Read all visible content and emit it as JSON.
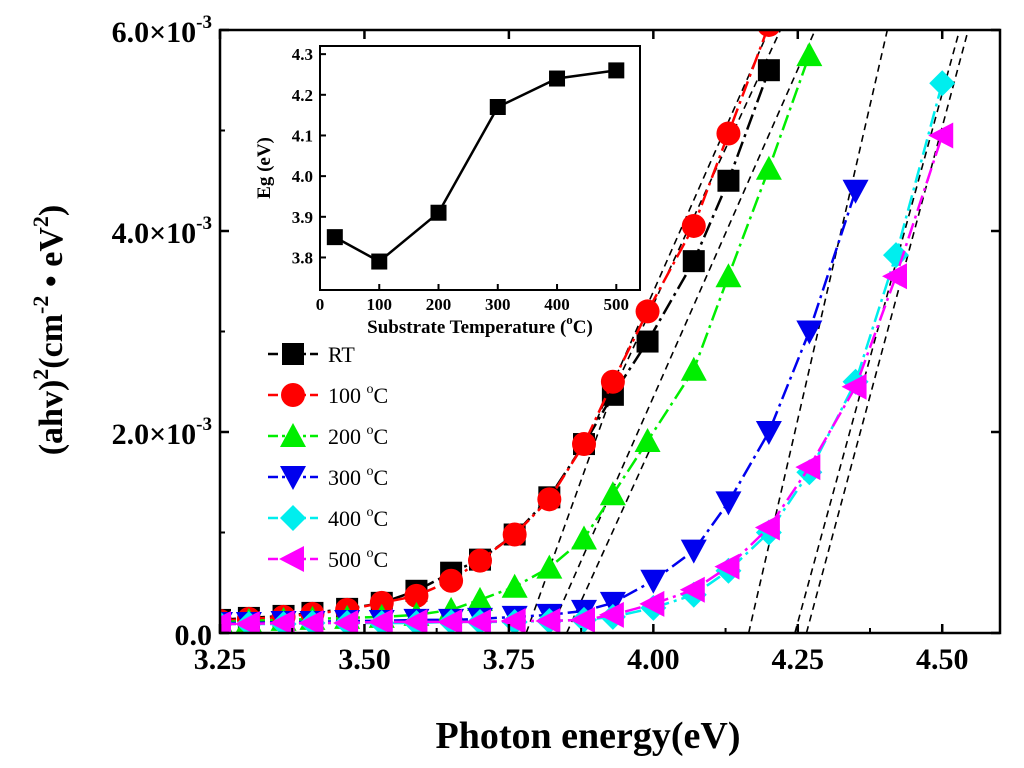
{
  "chart_data": {
    "type": "scatter",
    "xlabel": "Photon energy(eV)",
    "ylabel": {
      "base": "(ahv)",
      "exp1": "2",
      "mid": "(cm",
      "exp2": "-2",
      "dot": " • eV",
      "exp3": "2",
      "close": ")"
    },
    "xlim": [
      3.25,
      4.6
    ],
    "ylim": [
      0,
      0.006
    ],
    "xticks": [
      {
        "v": 3.25,
        "label": "3.25"
      },
      {
        "v": 3.5,
        "label": "3.50"
      },
      {
        "v": 3.75,
        "label": "3.75"
      },
      {
        "v": 4.0,
        "label": "4.00"
      },
      {
        "v": 4.25,
        "label": "4.25"
      },
      {
        "v": 4.5,
        "label": "4.50"
      }
    ],
    "yticks": [
      {
        "v": 0,
        "label": "0.0",
        "exp": ""
      },
      {
        "v": 0.002,
        "label": "2.0×10",
        "exp": "-3"
      },
      {
        "v": 0.004,
        "label": "4.0×10",
        "exp": "-3"
      },
      {
        "v": 0.006,
        "label": "6.0×10",
        "exp": "-3"
      }
    ],
    "series": [
      {
        "name": "RT",
        "unit": "",
        "marker": "square",
        "color": "#000000",
        "x": [
          3.25,
          3.3,
          3.36,
          3.41,
          3.47,
          3.53,
          3.59,
          3.65,
          3.7,
          3.76,
          3.82,
          3.88,
          3.93,
          3.99,
          4.07,
          4.13,
          4.2
        ],
        "y": [
          0.00013,
          0.00015,
          0.00017,
          0.0002,
          0.00024,
          0.0003,
          0.00042,
          0.0006,
          0.00073,
          0.00098,
          0.00135,
          0.00188,
          0.00237,
          0.0029,
          0.0037,
          0.0045,
          0.0056
        ]
      },
      {
        "name": "100 ",
        "unit": "C",
        "marker": "circle",
        "color": "#ff0000",
        "x": [
          3.25,
          3.3,
          3.36,
          3.41,
          3.47,
          3.53,
          3.59,
          3.65,
          3.7,
          3.76,
          3.82,
          3.88,
          3.93,
          3.99,
          4.07,
          4.13,
          4.2
        ],
        "y": [
          0.00012,
          0.00014,
          0.00016,
          0.00019,
          0.00023,
          0.0003,
          0.00037,
          0.00052,
          0.00072,
          0.00098,
          0.00133,
          0.00188,
          0.0025,
          0.0032,
          0.00405,
          0.00497,
          0.00605
        ]
      },
      {
        "name": "200 ",
        "unit": "C",
        "marker": "triangle-up",
        "color": "#00ee00",
        "x": [
          3.25,
          3.3,
          3.36,
          3.41,
          3.47,
          3.53,
          3.59,
          3.65,
          3.7,
          3.76,
          3.82,
          3.88,
          3.93,
          3.99,
          4.07,
          4.13,
          4.2,
          4.27
        ],
        "y": [
          0.00011,
          0.00012,
          0.00013,
          0.00014,
          0.00015,
          0.00016,
          0.00018,
          0.00023,
          0.00033,
          0.00046,
          0.00065,
          0.00094,
          0.00138,
          0.00191,
          0.00262,
          0.00355,
          0.00462,
          0.00575
        ]
      },
      {
        "name": "300 ",
        "unit": "C",
        "marker": "triangle-down",
        "color": "#0000ee",
        "x": [
          3.25,
          3.3,
          3.36,
          3.41,
          3.47,
          3.53,
          3.59,
          3.65,
          3.7,
          3.76,
          3.82,
          3.88,
          3.93,
          4.0,
          4.07,
          4.13,
          4.2,
          4.27,
          4.35
        ],
        "y": [
          0.0001,
          0.0001,
          0.00011,
          0.00011,
          0.00012,
          0.00012,
          0.00013,
          0.00013,
          0.00014,
          0.00016,
          0.00018,
          0.00022,
          0.0003,
          0.00052,
          0.00082,
          0.0013,
          0.002,
          0.003,
          0.0044
        ]
      },
      {
        "name": "400 ",
        "unit": "C",
        "marker": "diamond",
        "color": "#00eeee",
        "x": [
          3.25,
          3.3,
          3.36,
          3.41,
          3.47,
          3.53,
          3.59,
          3.65,
          3.7,
          3.76,
          3.82,
          3.88,
          3.93,
          4.0,
          4.07,
          4.13,
          4.2,
          4.27,
          4.35,
          4.42,
          4.5
        ],
        "y": [
          9e-05,
          9e-05,
          9e-05,
          0.0001,
          0.0001,
          0.0001,
          0.0001,
          0.00011,
          0.00011,
          0.00011,
          0.00012,
          0.00013,
          0.00016,
          0.00025,
          0.00038,
          0.00062,
          0.001,
          0.0016,
          0.0025,
          0.00376,
          0.00547
        ]
      },
      {
        "name": "500 ",
        "unit": "C",
        "marker": "triangle-left",
        "color": "#ff00ff",
        "x": [
          3.25,
          3.3,
          3.36,
          3.41,
          3.47,
          3.53,
          3.59,
          3.65,
          3.7,
          3.76,
          3.82,
          3.88,
          3.93,
          4.0,
          4.07,
          4.13,
          4.2,
          4.27,
          4.35,
          4.42,
          4.5
        ],
        "y": [
          9e-05,
          9e-05,
          0.0001,
          0.0001,
          0.0001,
          0.00011,
          0.00011,
          0.00011,
          0.00011,
          0.00012,
          0.00012,
          0.00013,
          0.00018,
          0.00029,
          0.00043,
          0.00066,
          0.00105,
          0.00165,
          0.00245,
          0.00355,
          0.00495
        ]
      }
    ],
    "tangent_lines": [
      {
        "x1": 3.93,
        "y1": 0.0024,
        "x2": 4.22,
        "y2": 0.006
      },
      {
        "x1": 3.885,
        "y1": 0.0019,
        "x2": 4.2,
        "y2": 0.006
      },
      {
        "x1": 3.82,
        "y1": 0.0,
        "x2": 4.28,
        "y2": 0.006
      },
      {
        "x1": 4.165,
        "y1": 0.0,
        "x2": 4.405,
        "y2": 0.006
      },
      {
        "x1": 4.245,
        "y1": 0.0,
        "x2": 4.53,
        "y2": 0.006
      },
      {
        "x1": 4.265,
        "y1": 0.0,
        "x2": 4.545,
        "y2": 0.006
      },
      {
        "x1": 3.85,
        "y1": 0.0,
        "x2": 4.0,
        "y2": 0.0019
      },
      {
        "x1": 3.78,
        "y1": 0.0,
        "x2": 3.93,
        "y2": 0.0024
      }
    ],
    "inset": {
      "type": "line",
      "xlabel": "Substrate Temperature (",
      "xlabel_sup": "o",
      "xlabel_end": "C)",
      "ylabel": "Eg (eV)",
      "xlim": [
        0,
        540
      ],
      "ylim": [
        3.72,
        4.32
      ],
      "xticks": [
        0,
        100,
        200,
        300,
        400,
        500
      ],
      "yticks": [
        {
          "v": 3.8,
          "label": "3.8"
        },
        {
          "v": 3.9,
          "label": "3.9"
        },
        {
          "v": 4.0,
          "label": "4.0"
        },
        {
          "v": 4.1,
          "label": "4.1"
        },
        {
          "v": 4.2,
          "label": "4.2"
        },
        {
          "v": 4.3,
          "label": "4.3"
        }
      ],
      "x": [
        25,
        100,
        200,
        300,
        400,
        500
      ],
      "y": [
        3.85,
        3.79,
        3.91,
        4.17,
        4.24,
        4.26
      ],
      "color": "#000000"
    }
  }
}
